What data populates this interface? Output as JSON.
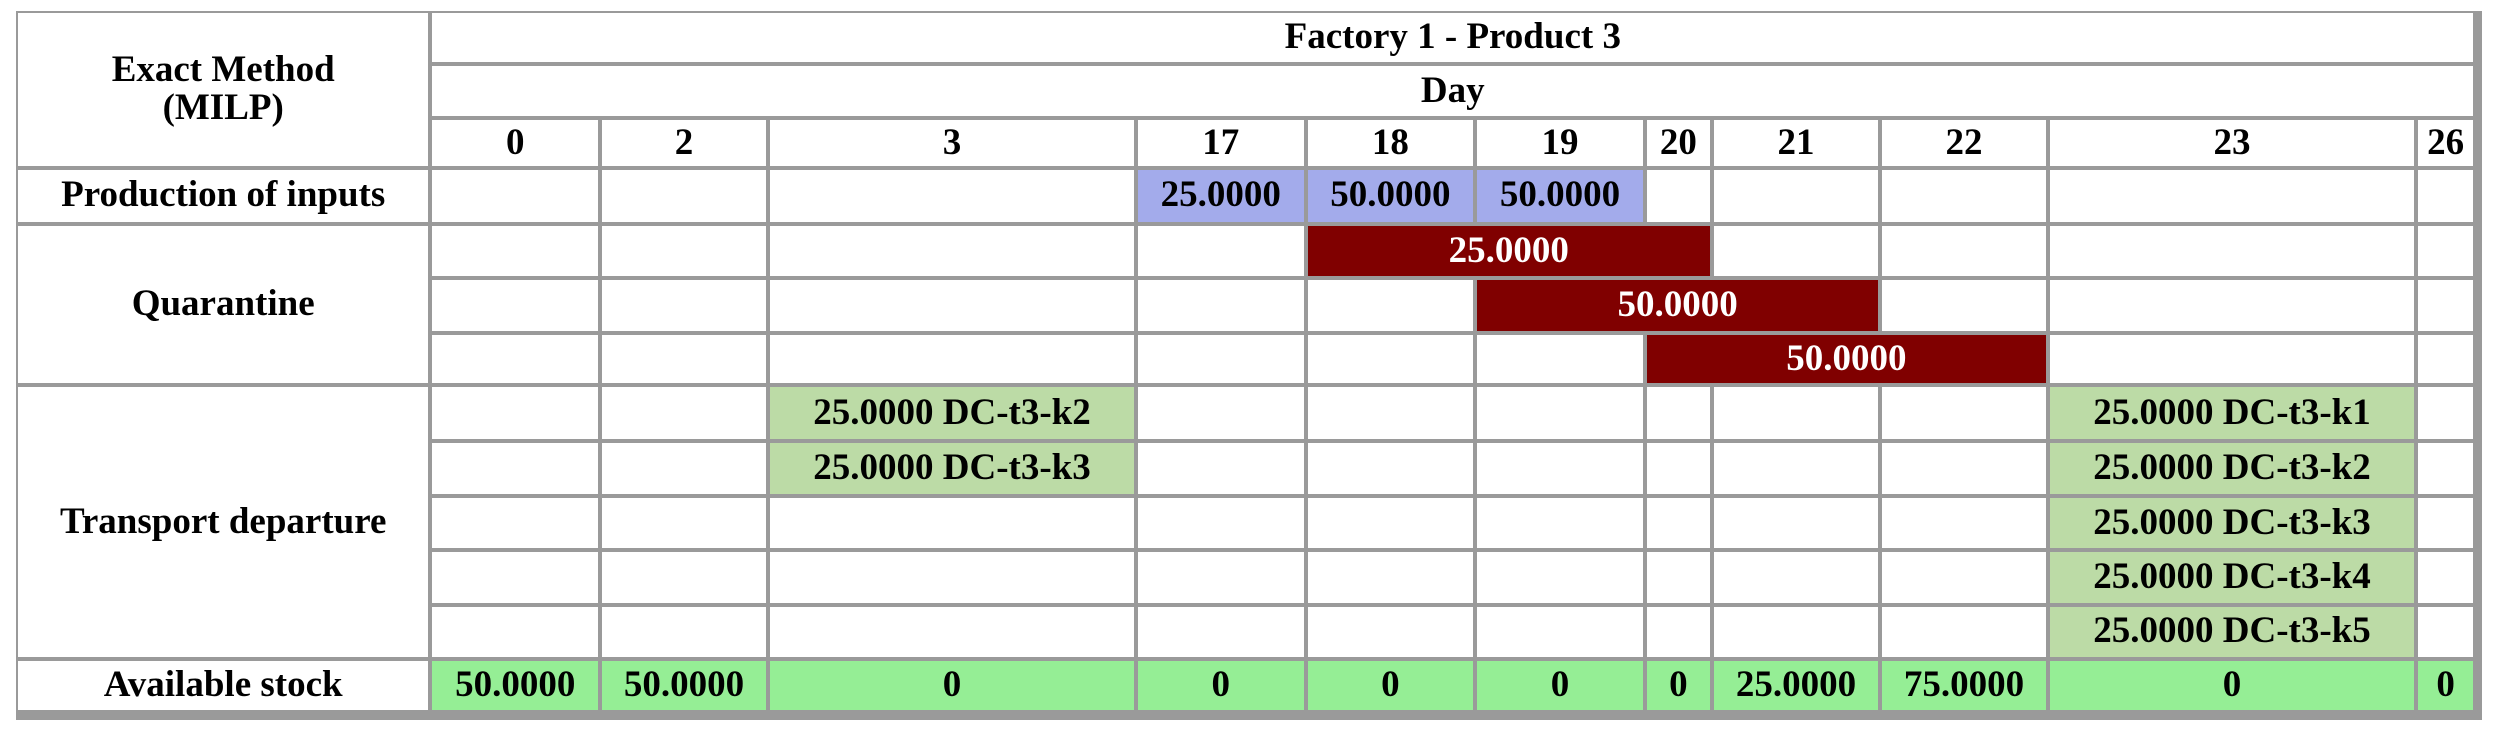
{
  "corner_label": [
    "Exact Method",
    "(MILP)"
  ],
  "title": "Factory 1 - Product 3",
  "day_label": "Day",
  "days": [
    "0",
    "2",
    "3",
    "17",
    "18",
    "19",
    "20",
    "21",
    "22",
    "23",
    "26"
  ],
  "rows": {
    "production": "Production of inputs",
    "quarantine": "Quarantine",
    "transport": "Transport departure",
    "stock": "Available stock"
  },
  "production": [
    {
      "day": "17",
      "value": "25.0000"
    },
    {
      "day": "18",
      "value": "50.0000"
    },
    {
      "day": "19",
      "value": "50.0000"
    }
  ],
  "quarantine": [
    {
      "from_day": "18",
      "to_day": "20",
      "value": "25.0000"
    },
    {
      "from_day": "19",
      "to_day": "21",
      "value": "50.0000"
    },
    {
      "from_day": "20",
      "to_day": "22",
      "value": "50.0000"
    }
  ],
  "transport": [
    {
      "day": "3",
      "value": "25.0000 DC-t3-k2"
    },
    {
      "day": "3",
      "value": "25.0000 DC-t3-k3"
    },
    {
      "day": "23",
      "value": "25.0000 DC-t3-k1"
    },
    {
      "day": "23",
      "value": "25.0000 DC-t3-k2"
    },
    {
      "day": "23",
      "value": "25.0000 DC-t3-k3"
    },
    {
      "day": "23",
      "value": "25.0000 DC-t3-k4"
    },
    {
      "day": "23",
      "value": "25.0000 DC-t3-k5"
    }
  ],
  "stock": [
    "50.0000",
    "50.0000",
    "0",
    "0",
    "0",
    "0",
    "0",
    "25.0000",
    "75.0000",
    "0",
    "0"
  ],
  "colors": {
    "production": "#a3abeb",
    "quarantine": "#800000",
    "transport": "#bcdba6",
    "stock": "#95ee95",
    "grid": "#9a9a9a"
  }
}
